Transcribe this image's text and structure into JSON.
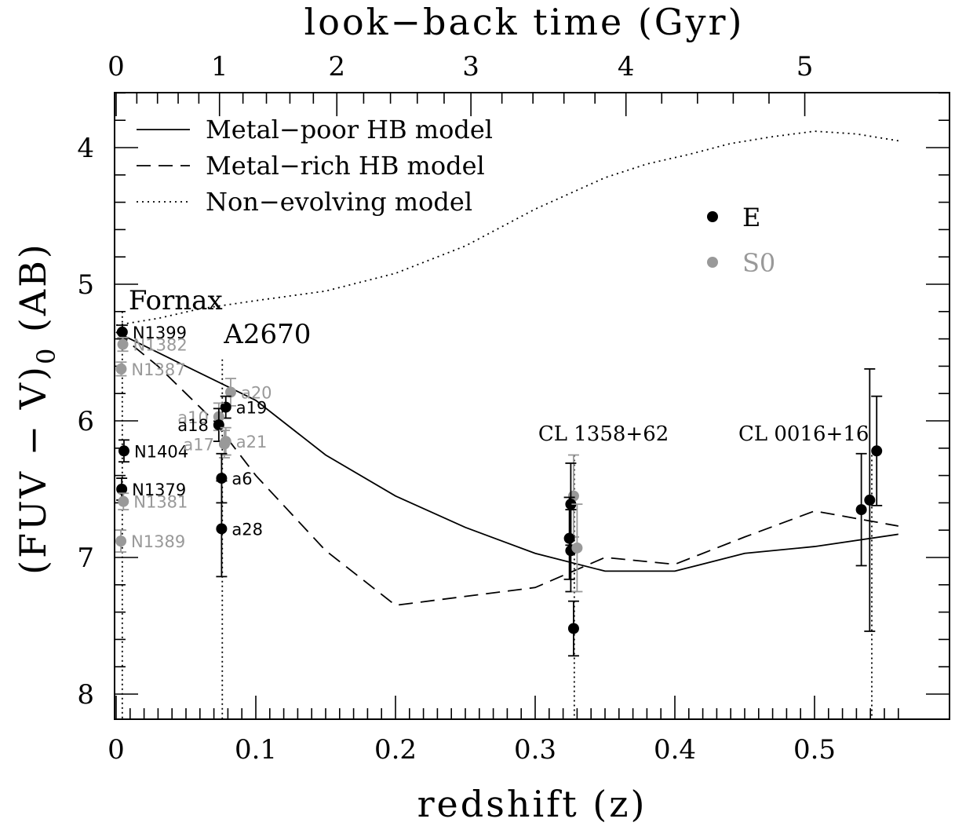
{
  "chart_data": {
    "type": "scatter",
    "xlabel": "redshift (z)",
    "top_xlabel": "look−back time (Gyr)",
    "ylabel_main": "(FUV − V)",
    "ylabel_sub": "0",
    "ylabel_suffix": " (AB)",
    "xlim": [
      0,
      0.56
    ],
    "ylim": [
      8.2,
      3.6
    ],
    "y_inverted": true,
    "x_ticks": [
      0,
      0.1,
      0.2,
      0.3,
      0.4,
      0.5
    ],
    "x_tick_labels": [
      "0",
      "0.1",
      "0.2",
      "0.3",
      "0.4",
      "0.5"
    ],
    "x_minor_step": 0.01,
    "y_ticks": [
      4,
      5,
      6,
      7,
      8
    ],
    "y_tick_labels": [
      "4",
      "5",
      "6",
      "7",
      "8"
    ],
    "y_minor_step": 0.2,
    "top_ticks": [
      {
        "gyr": "0",
        "z": 0.0
      },
      {
        "gyr": "1",
        "z": 0.074
      },
      {
        "gyr": "2",
        "z": 0.158
      },
      {
        "gyr": "3",
        "z": 0.254
      },
      {
        "gyr": "4",
        "z": 0.365
      },
      {
        "gyr": "5",
        "z": 0.493
      }
    ],
    "legend_lines": [
      {
        "label": "Metal−poor HB model",
        "style": "solid"
      },
      {
        "label": "Metal−rich HB model",
        "style": "dashed"
      },
      {
        "label": "Non−evolving model",
        "style": "dotted"
      }
    ],
    "legend_points": [
      {
        "label": "E",
        "color": "#000000"
      },
      {
        "label": "S0",
        "color": "#999999"
      }
    ],
    "colors": {
      "E": "#000000",
      "S0": "#999999"
    },
    "models": [
      {
        "name": "Metal−poor HB model",
        "style": "solid",
        "x": [
          0.0,
          0.02,
          0.05,
          0.1,
          0.15,
          0.2,
          0.25,
          0.3,
          0.35,
          0.4,
          0.45,
          0.5,
          0.56
        ],
        "y": [
          5.35,
          5.45,
          5.6,
          5.85,
          6.25,
          6.55,
          6.78,
          6.97,
          7.1,
          7.1,
          6.97,
          6.92,
          6.83
        ]
      },
      {
        "name": "Metal−rich HB model",
        "style": "dashed",
        "x": [
          0.0,
          0.03,
          0.07,
          0.1,
          0.15,
          0.2,
          0.3,
          0.35,
          0.4,
          0.45,
          0.5,
          0.56
        ],
        "y": [
          5.35,
          5.6,
          6.0,
          6.4,
          6.95,
          7.35,
          7.22,
          7.0,
          7.05,
          6.85,
          6.66,
          6.77
        ]
      },
      {
        "name": "Non−evolving model",
        "style": "dotted",
        "x": [
          0.0,
          0.03,
          0.06,
          0.1,
          0.15,
          0.2,
          0.25,
          0.3,
          0.35,
          0.38,
          0.41,
          0.44,
          0.47,
          0.5,
          0.53,
          0.56
        ],
        "y": [
          5.3,
          5.25,
          5.18,
          5.12,
          5.05,
          4.92,
          4.72,
          4.45,
          4.22,
          4.12,
          4.05,
          3.97,
          3.92,
          3.88,
          3.9,
          3.95
        ]
      }
    ],
    "clusters": [
      {
        "name": "Fornax",
        "z": 0.0044
      },
      {
        "name": "A2670",
        "z": 0.076
      },
      {
        "name": "CL 1358+62",
        "z": 0.328
      },
      {
        "name": "CL 0016+16",
        "z": 0.541
      }
    ],
    "galaxies": [
      {
        "label": "N1399",
        "type": "E",
        "x": 0.0044,
        "y": 5.35,
        "yerr": 0.05,
        "label_side": "right"
      },
      {
        "label": "N1382",
        "type": "S0",
        "x": 0.0048,
        "y": 5.44,
        "yerr": 0.05,
        "label_side": "right"
      },
      {
        "label": "N1387",
        "type": "S0",
        "x": 0.0036,
        "y": 5.62,
        "yerr": 0.05,
        "label_side": "right"
      },
      {
        "label": "N1404",
        "type": "E",
        "x": 0.0056,
        "y": 6.22,
        "yerr": 0.08,
        "label_side": "right"
      },
      {
        "label": "N1379",
        "type": "E",
        "x": 0.004,
        "y": 6.5,
        "yerr": 0.08,
        "label_side": "right"
      },
      {
        "label": "N1381",
        "type": "S0",
        "x": 0.0052,
        "y": 6.59,
        "yerr": 0.06,
        "label_side": "right"
      },
      {
        "label": "N1389",
        "type": "S0",
        "x": 0.0034,
        "y": 6.88,
        "yerr": 0.08,
        "label_side": "right"
      },
      {
        "label": "a20",
        "type": "S0",
        "x": 0.082,
        "y": 5.79,
        "yerr": 0.1,
        "label_side": "right"
      },
      {
        "label": "a19",
        "type": "E",
        "x": 0.0785,
        "y": 5.9,
        "yerr": 0.08,
        "label_side": "right"
      },
      {
        "label": "a10",
        "type": "S0",
        "x": 0.0735,
        "y": 5.97,
        "yerr": 0.1,
        "label_side": "left"
      },
      {
        "label": "a18",
        "type": "E",
        "x": 0.0735,
        "y": 6.03,
        "yerr": 0.12,
        "label_side": "left"
      },
      {
        "label": "a21",
        "type": "S0",
        "x": 0.0785,
        "y": 6.15,
        "yerr": 0.1,
        "label_side": "right"
      },
      {
        "label": "a17",
        "type": "S0",
        "x": 0.0775,
        "y": 6.17,
        "yerr": 0.1,
        "label_side": "left"
      },
      {
        "label": "a6",
        "type": "E",
        "x": 0.0755,
        "y": 6.42,
        "yerr": 0.18,
        "label_side": "right"
      },
      {
        "label": "a28",
        "type": "E",
        "x": 0.0755,
        "y": 6.79,
        "yerr": 0.35,
        "label_side": "right"
      },
      {
        "label": "",
        "type": "S0",
        "x": 0.3275,
        "y": 6.55,
        "yerr": 0.3,
        "label_side": "none"
      },
      {
        "label": "",
        "type": "E",
        "x": 0.3255,
        "y": 6.61,
        "yerr": 0.3,
        "label_side": "none"
      },
      {
        "label": "",
        "type": "E",
        "x": 0.3245,
        "y": 6.86,
        "yerr": 0.3,
        "label_side": "none"
      },
      {
        "label": "",
        "type": "E",
        "x": 0.3255,
        "y": 6.95,
        "yerr": 0.3,
        "label_side": "none"
      },
      {
        "label": "",
        "type": "S0",
        "x": 0.33,
        "y": 6.93,
        "yerr": 0.32,
        "label_side": "none"
      },
      {
        "label": "",
        "type": "E",
        "x": 0.3275,
        "y": 7.52,
        "yerr": 0.2,
        "label_side": "none"
      },
      {
        "label": "",
        "type": "E",
        "x": 0.5335,
        "y": 6.65,
        "yerr": 0.41,
        "label_side": "none"
      },
      {
        "label": "",
        "type": "E",
        "x": 0.5395,
        "y": 6.58,
        "yerr": 0.96,
        "label_side": "none"
      },
      {
        "label": "",
        "type": "E",
        "x": 0.5445,
        "y": 6.22,
        "yerr": 0.4,
        "label_side": "none"
      }
    ]
  }
}
